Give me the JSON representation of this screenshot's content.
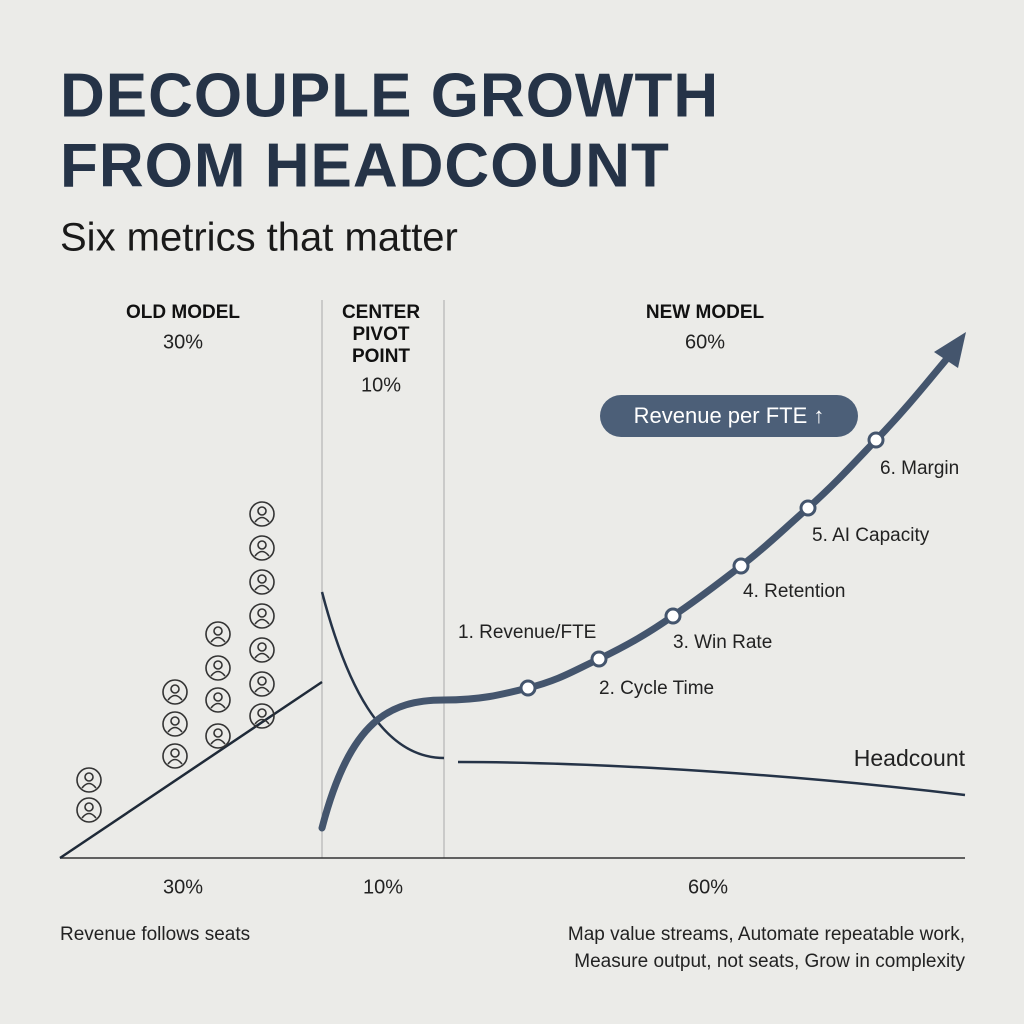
{
  "header": {
    "title_lines": [
      "DECOUPLE GROWTH",
      "FROM HEADCOUNT"
    ],
    "subtitle": "Six metrics that matter"
  },
  "sections": [
    {
      "label_lines": [
        "OLD MODEL"
      ],
      "share_top": "30%",
      "share_bottom": "30%",
      "caption_lines": [
        "Revenue follows seats"
      ]
    },
    {
      "label_lines": [
        "CENTER",
        "PIVOT",
        "POINT"
      ],
      "share_top": "10%",
      "share_bottom": "10%"
    },
    {
      "label_lines": [
        "NEW MODEL"
      ],
      "share_top": "60%",
      "share_bottom": "60%",
      "caption_lines": [
        "Map value streams, Automate repeatable work,",
        "Measure output, not seats, Grow in complexity"
      ]
    }
  ],
  "badge": "Revenue per FTE ↑",
  "metrics": [
    "1. Revenue/FTE",
    "2. Cycle Time",
    "3. Win Rate",
    "4. Retention",
    "5. AI Capacity",
    "6. Margin"
  ],
  "headcount_label": "Headcount"
}
